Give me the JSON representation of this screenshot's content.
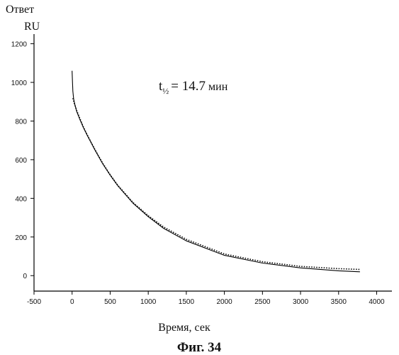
{
  "chart_data": {
    "type": "line",
    "title": "",
    "ylabel_line1": "Ответ",
    "ylabel_line2": "RU",
    "xlabel": "Время, сек",
    "caption": "Фиг. 34",
    "annotation": {
      "t_symbol": "t",
      "half": "½",
      "equals_value": "= 14.7",
      "unit": "мин"
    },
    "xlim": [
      -500,
      4200
    ],
    "ylim": [
      -80,
      1250
    ],
    "x_ticks": [
      -500,
      0,
      500,
      1000,
      1500,
      2000,
      2500,
      3000,
      3500,
      4000
    ],
    "y_ticks": [
      0,
      200,
      400,
      600,
      800,
      1000,
      1200
    ],
    "grid": false,
    "series": [
      {
        "style": "solid",
        "x": [
          0,
          5,
          10,
          20,
          40,
          60,
          100,
          150,
          200,
          300,
          400,
          500,
          600,
          800,
          1000,
          1200,
          1500,
          2000,
          2500,
          3000,
          3500,
          3780
        ],
        "y": [
          1060,
          1000,
          955,
          915,
          880,
          850,
          810,
          765,
          725,
          650,
          580,
          520,
          465,
          375,
          305,
          245,
          180,
          105,
          65,
          40,
          25,
          20
        ]
      },
      {
        "style": "dotted",
        "x": [
          10,
          30,
          60,
          100,
          150,
          200,
          300,
          400,
          500,
          600,
          800,
          1000,
          1200,
          1500,
          2000,
          2500,
          3000,
          3500,
          3780
        ],
        "y": [
          918,
          890,
          855,
          815,
          768,
          728,
          652,
          583,
          523,
          468,
          378,
          310,
          252,
          188,
          112,
          72,
          48,
          36,
          32
        ]
      }
    ]
  }
}
